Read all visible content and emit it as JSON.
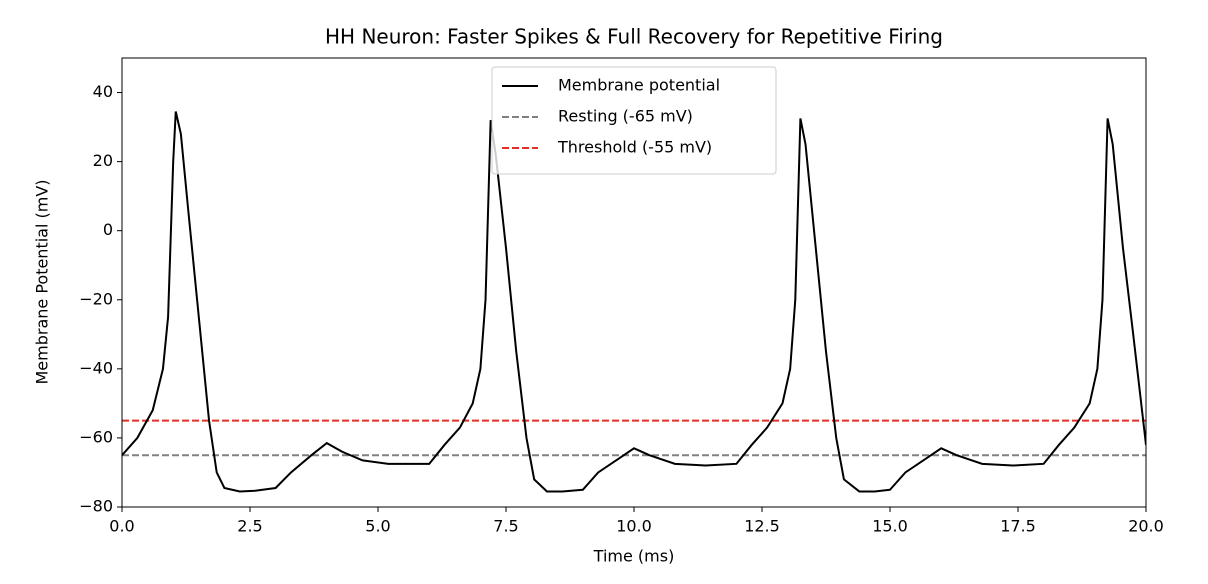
{
  "chart_data": {
    "type": "line",
    "title": "HH Neuron: Faster Spikes & Full Recovery for Repetitive Firing",
    "x_label": "Time (ms)",
    "y_label": "Membrane Potential (mV)",
    "xlim": [
      0,
      20
    ],
    "ylim": [
      -80,
      50
    ],
    "xticks": [
      {
        "value": 0,
        "label": "0.0"
      },
      2.5,
      {
        "value": 5,
        "label": "5.0"
      },
      7.5,
      {
        "value": 10,
        "label": "10.0"
      },
      12.5,
      {
        "value": 15,
        "label": "15.0"
      },
      17.5,
      {
        "value": 20,
        "label": "20.0"
      }
    ],
    "yticks": [
      {
        "value": -80,
        "label": "−80"
      },
      {
        "value": -60,
        "label": "−60"
      },
      {
        "value": -40,
        "label": "−40"
      },
      {
        "value": -20,
        "label": "−20"
      },
      0,
      20,
      40
    ],
    "legend": "upper center",
    "series": [
      {
        "name": "Membrane potential",
        "color": "#000000",
        "x": [
          0,
          0.3,
          0.6,
          0.8,
          0.9,
          1.0,
          1.05,
          1.15,
          1.3,
          1.5,
          1.7,
          1.85,
          2.0,
          2.3,
          2.6,
          3.0,
          3.3,
          3.7,
          4.0,
          4.3,
          4.7,
          5.2,
          6.0,
          6.3,
          6.6,
          6.85,
          7.0,
          7.1,
          7.2,
          7.3,
          7.5,
          7.7,
          7.9,
          8.05,
          8.3,
          8.6,
          9.0,
          9.3,
          9.7,
          10.0,
          10.3,
          10.8,
          11.4,
          12.0,
          12.3,
          12.6,
          12.9,
          13.05,
          13.15,
          13.25,
          13.35,
          13.55,
          13.75,
          13.95,
          14.1,
          14.4,
          14.7,
          15.0,
          15.3,
          15.7,
          16.0,
          16.3,
          16.8,
          17.4,
          18.0,
          18.3,
          18.6,
          18.9,
          19.05,
          19.15,
          19.25,
          19.35,
          19.55,
          19.75,
          20.0
        ],
        "values": [
          -65,
          -60,
          -52,
          -40,
          -25,
          20,
          34.5,
          28,
          5,
          -25,
          -55,
          -70,
          -74.5,
          -75.5,
          -75.3,
          -74.5,
          -70,
          -65,
          -61.5,
          -64,
          -66.5,
          -67.5,
          -67.5,
          -62,
          -57,
          -50,
          -40,
          -20,
          32,
          22,
          -5,
          -35,
          -60,
          -72,
          -75.5,
          -75.5,
          -75,
          -70,
          -66,
          -63,
          -65,
          -67.5,
          -68,
          -67.5,
          -62,
          -57,
          -50,
          -40,
          -20,
          32.5,
          25,
          -5,
          -35,
          -60,
          -72,
          -75.5,
          -75.5,
          -75,
          -70,
          -66,
          -63,
          -65,
          -67.5,
          -68,
          -67.5,
          -62,
          -57,
          -50,
          -40,
          -20,
          32.5,
          25,
          -5,
          -30,
          -62
        ]
      }
    ],
    "reference_lines": [
      {
        "name": "Resting (-65 mV)",
        "value": -65,
        "color": "#808080"
      },
      {
        "name": "Threshold (-55 mV)",
        "value": -55,
        "color": "#e0302a"
      }
    ]
  }
}
